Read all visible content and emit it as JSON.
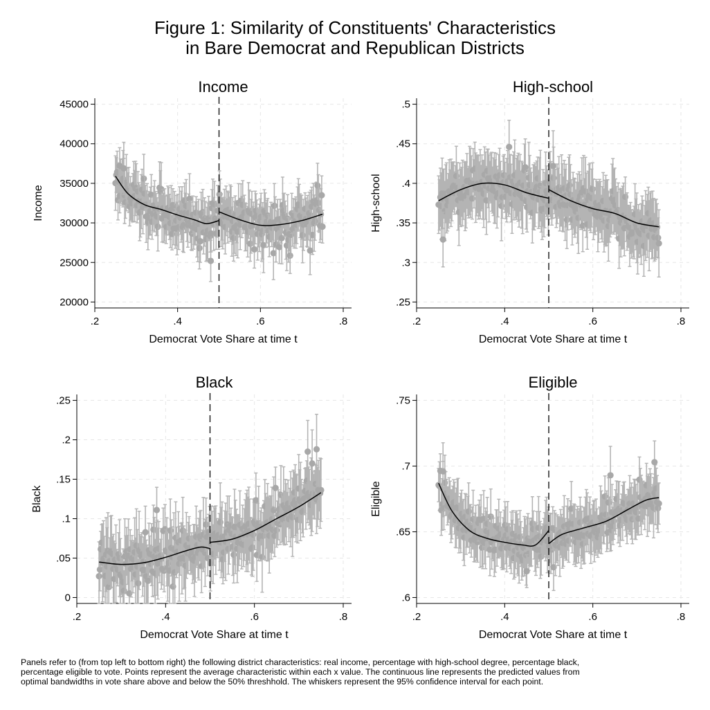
{
  "figure": {
    "title_lines": [
      "Figure 1: Similarity of Constituents' Characteristics",
      "in Bare Democrat and Republican Districts"
    ],
    "footnote_lines": [
      "Panels refer to (from top left to bottom right) the following district characteristics: real income, percentage with high-school degree, percentage black,",
      "percentage eligible to vote. Points represent the average characteristic within each x value. The continuous line represents the predicted values from",
      "optimal bandwidths in vote share above and below the 50% threshhold. The whiskers represent the 95% confidence interval for each point."
    ]
  },
  "style": {
    "point_color": "#a8a8a8",
    "whisker_color": "#b4b4b4",
    "fit_color": "#000000",
    "grid_color": "#e6e6e6",
    "cutoff_color": "#000000"
  },
  "chart_data": [
    {
      "type": "scatter",
      "title": "Income",
      "xlabel": "Democrat Vote Share at time t",
      "ylabel": "Income",
      "xlim": [
        0.2,
        0.8
      ],
      "ylim": [
        20000,
        45000
      ],
      "xticks": [
        0.2,
        0.4,
        0.6,
        0.8
      ],
      "xtick_labels": [
        ".2",
        ".4",
        ".6",
        ".8"
      ],
      "yticks": [
        20000,
        25000,
        30000,
        35000,
        40000,
        45000
      ],
      "ytick_labels": [
        "20000",
        "25000",
        "30000",
        "35000",
        "40000",
        "45000"
      ],
      "grid": true,
      "cutoff": 0.5,
      "point_count": 250,
      "ci_half_width": [
        2000,
        3600
      ],
      "noise": 2200,
      "fit_left": [
        [
          0.25,
          35900
        ],
        [
          0.28,
          33700
        ],
        [
          0.32,
          32300
        ],
        [
          0.36,
          31700
        ],
        [
          0.4,
          31000
        ],
        [
          0.44,
          30400
        ],
        [
          0.47,
          29900
        ],
        [
          0.5,
          30300
        ]
      ],
      "fit_right": [
        [
          0.5,
          31400
        ],
        [
          0.55,
          30400
        ],
        [
          0.6,
          29700
        ],
        [
          0.65,
          29800
        ],
        [
          0.7,
          30300
        ],
        [
          0.75,
          31100
        ]
      ],
      "marks": [
        {
          "x": 0.26,
          "y": 37200
        },
        {
          "x": 0.27,
          "y": 36900
        },
        {
          "x": 0.48,
          "y": 25200
        },
        {
          "x": 0.72,
          "y": 26500
        }
      ]
    },
    {
      "type": "scatter",
      "title": "High-school",
      "xlabel": "Democrat Vote Share at time t",
      "ylabel": "High-school",
      "xlim": [
        0.2,
        0.8
      ],
      "ylim": [
        0.25,
        0.5
      ],
      "xticks": [
        0.2,
        0.4,
        0.6,
        0.8
      ],
      "xtick_labels": [
        ".2",
        ".4",
        ".6",
        ".8"
      ],
      "yticks": [
        0.25,
        0.3,
        0.35,
        0.4,
        0.45,
        0.5
      ],
      "ytick_labels": [
        ".25",
        ".3",
        ".35",
        ".4",
        ".45",
        ".5"
      ],
      "grid": true,
      "cutoff": 0.5,
      "point_count": 250,
      "ci_half_width": [
        0.025,
        0.045
      ],
      "noise": 0.02,
      "fit_left": [
        [
          0.25,
          0.378
        ],
        [
          0.3,
          0.392
        ],
        [
          0.35,
          0.4
        ],
        [
          0.4,
          0.398
        ],
        [
          0.45,
          0.388
        ],
        [
          0.5,
          0.381
        ]
      ],
      "fit_right": [
        [
          0.5,
          0.392
        ],
        [
          0.55,
          0.378
        ],
        [
          0.6,
          0.368
        ],
        [
          0.65,
          0.362
        ],
        [
          0.7,
          0.35
        ],
        [
          0.75,
          0.345
        ]
      ],
      "marks": [
        {
          "x": 0.41,
          "y": 0.446
        },
        {
          "x": 0.51,
          "y": 0.422
        },
        {
          "x": 0.26,
          "y": 0.329
        }
      ]
    },
    {
      "type": "scatter",
      "title": "Black",
      "xlabel": "Democrat Vote Share at time t",
      "ylabel": "Black",
      "xlim": [
        0.2,
        0.8
      ],
      "ylim": [
        0,
        0.25
      ],
      "xticks": [
        0.2,
        0.4,
        0.6,
        0.8
      ],
      "xtick_labels": [
        ".2",
        ".4",
        ".6",
        ".8"
      ],
      "yticks": [
        0,
        0.05,
        0.1,
        0.15,
        0.2,
        0.25
      ],
      "ytick_labels": [
        "0",
        ".05",
        ".1",
        ".15",
        ".2",
        ".25"
      ],
      "grid": true,
      "cutoff": 0.5,
      "point_count": 250,
      "ci_half_width": [
        0.02,
        0.05
      ],
      "noise": 0.022,
      "fit_left": [
        [
          0.25,
          0.045
        ],
        [
          0.3,
          0.042
        ],
        [
          0.35,
          0.044
        ],
        [
          0.4,
          0.051
        ],
        [
          0.45,
          0.06
        ],
        [
          0.48,
          0.064
        ],
        [
          0.5,
          0.062
        ]
      ],
      "fit_right": [
        [
          0.5,
          0.07
        ],
        [
          0.55,
          0.074
        ],
        [
          0.6,
          0.085
        ],
        [
          0.65,
          0.1
        ],
        [
          0.7,
          0.115
        ],
        [
          0.75,
          0.133
        ]
      ],
      "marks": [
        {
          "x": 0.72,
          "y": 0.185
        },
        {
          "x": 0.74,
          "y": 0.188
        },
        {
          "x": 0.73,
          "y": 0.17
        },
        {
          "x": 0.38,
          "y": 0.111
        }
      ]
    },
    {
      "type": "scatter",
      "title": "Eligible",
      "xlabel": "Democrat Vote Share at time t",
      "ylabel": "Eligible",
      "xlim": [
        0.2,
        0.8
      ],
      "ylim": [
        0.6,
        0.75
      ],
      "xticks": [
        0.2,
        0.4,
        0.6,
        0.8
      ],
      "xtick_labels": [
        ".2",
        ".4",
        ".6",
        ".8"
      ],
      "yticks": [
        0.6,
        0.65,
        0.7,
        0.75
      ],
      "ytick_labels": [
        ".6",
        ".65",
        ".7",
        ".75"
      ],
      "grid": true,
      "cutoff": 0.5,
      "point_count": 250,
      "ci_half_width": [
        0.012,
        0.024
      ],
      "noise": 0.011,
      "fit_left": [
        [
          0.25,
          0.687
        ],
        [
          0.28,
          0.666
        ],
        [
          0.32,
          0.651
        ],
        [
          0.36,
          0.645
        ],
        [
          0.4,
          0.642
        ],
        [
          0.44,
          0.64
        ],
        [
          0.47,
          0.64
        ],
        [
          0.5,
          0.651
        ]
      ],
      "fit_right": [
        [
          0.5,
          0.641
        ],
        [
          0.53,
          0.648
        ],
        [
          0.58,
          0.653
        ],
        [
          0.63,
          0.658
        ],
        [
          0.68,
          0.667
        ],
        [
          0.72,
          0.674
        ],
        [
          0.75,
          0.676
        ]
      ],
      "marks": [
        {
          "x": 0.26,
          "y": 0.696
        },
        {
          "x": 0.64,
          "y": 0.693
        },
        {
          "x": 0.74,
          "y": 0.703
        },
        {
          "x": 0.45,
          "y": 0.62
        }
      ]
    }
  ]
}
